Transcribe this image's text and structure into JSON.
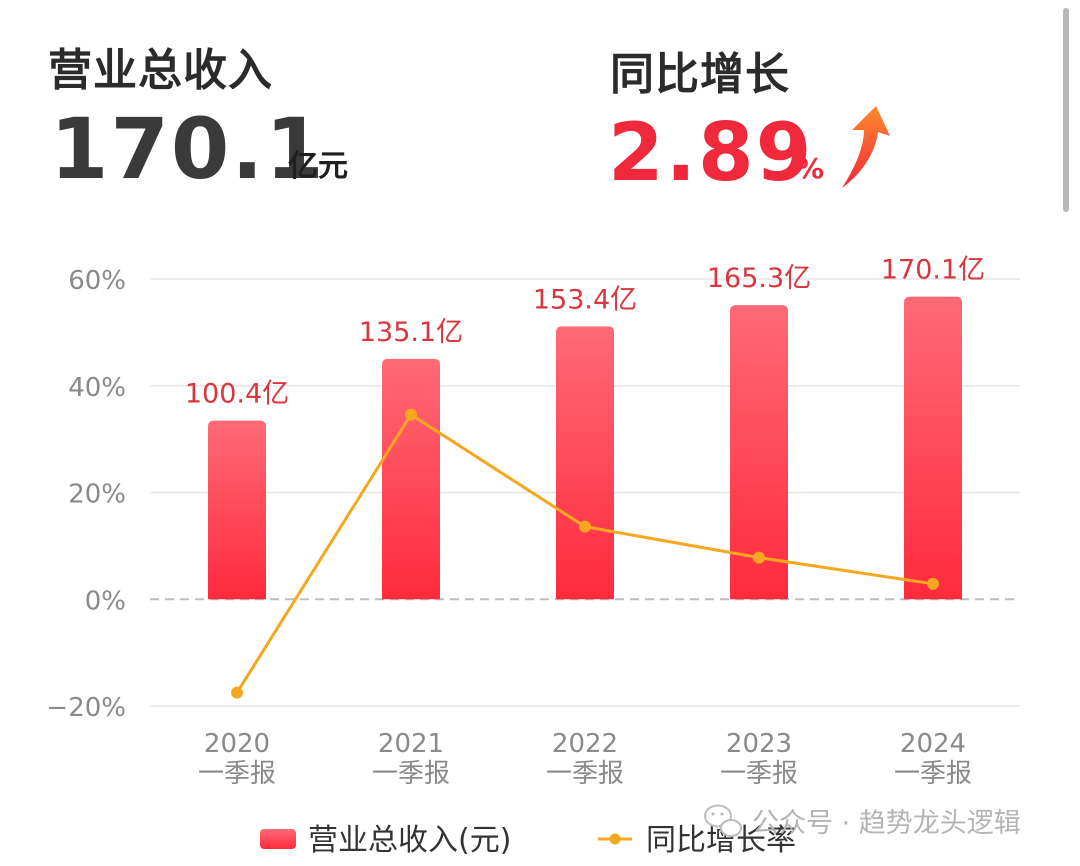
{
  "header": {
    "revenue_label": "营业总收入",
    "revenue_value": "170.1",
    "revenue_unit": "亿元",
    "growth_label": "同比增长",
    "growth_value": "2.89",
    "growth_unit": "%",
    "growth_direction_icon": "up-arrow-icon"
  },
  "colors": {
    "bar_top": "#ff6a76",
    "bar_bottom": "#ff2a3d",
    "bar_label": "#d9363e",
    "line": "#f5a81f",
    "growth_red": "#f0283c",
    "grid": "#e6e6e6",
    "axis_text": "#8a8a8a"
  },
  "chart_data": {
    "type": "bar",
    "categories": [
      "2020\n一季报",
      "2021\n一季报",
      "2022\n一季报",
      "2023\n一季报",
      "2024\n一季报"
    ],
    "series": [
      {
        "name": "营业总收入(元)",
        "type": "bar",
        "values": [
          100.4,
          135.1,
          153.4,
          165.3,
          170.1
        ],
        "labels": [
          "100.4亿",
          "135.1亿",
          "153.4亿",
          "165.3亿",
          "170.1亿"
        ]
      },
      {
        "name": "同比增长率",
        "type": "line",
        "values": [
          -17.5,
          34.6,
          13.6,
          7.8,
          2.89
        ]
      }
    ],
    "y_ticks": [
      60,
      40,
      20,
      0,
      -20
    ],
    "y_tick_labels": [
      "60%",
      "40%",
      "20%",
      "0%",
      "−20%"
    ],
    "ylim": [
      -20,
      60
    ],
    "grid": true,
    "zero_line": "dashed",
    "legend_position": "bottom"
  },
  "watermark": {
    "icon": "wechat-icon",
    "text": "公众号 · 趋势龙头逻辑"
  }
}
